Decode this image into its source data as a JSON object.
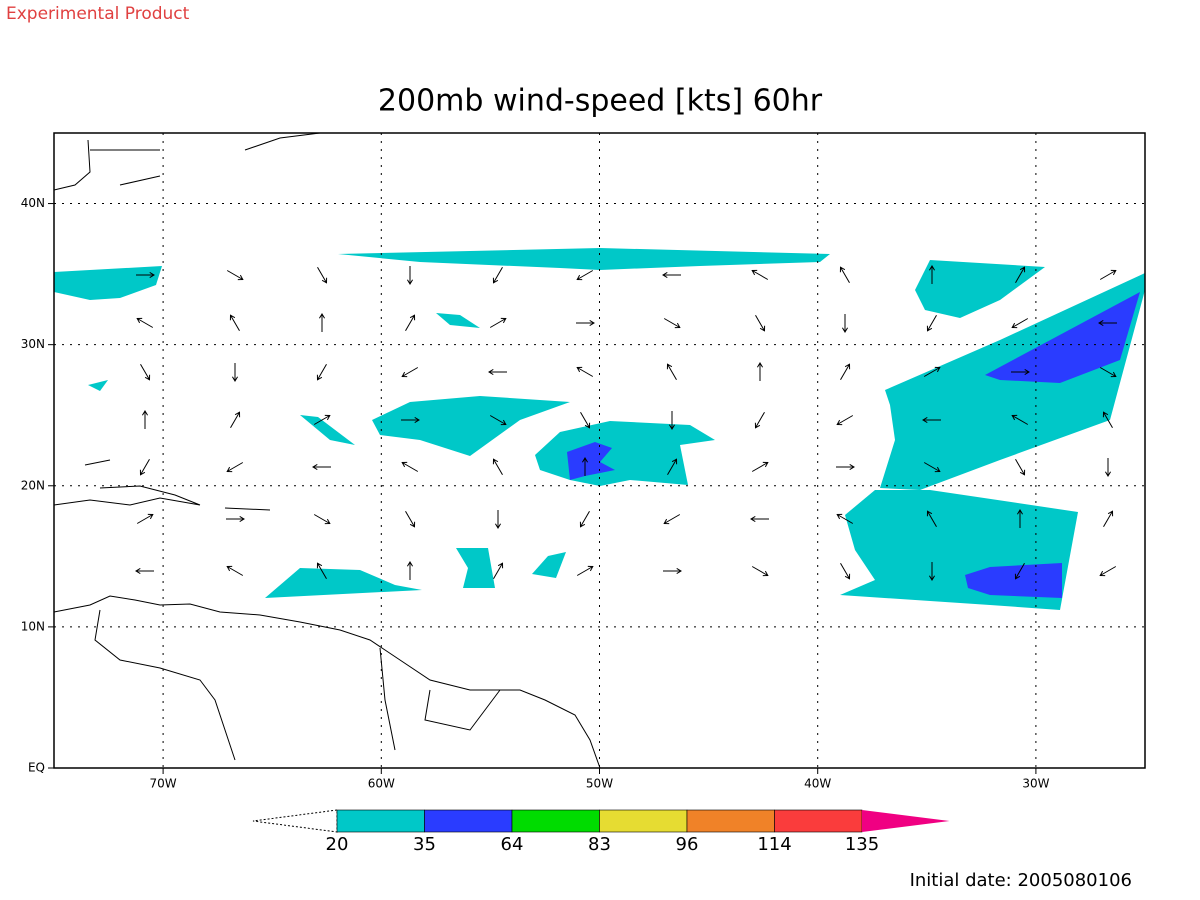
{
  "header": {
    "label": "Experimental Product",
    "title": "200mb wind-speed [kts] 60hr"
  },
  "map": {
    "lonlim": [
      -75,
      -25
    ],
    "latlim": [
      0,
      45
    ],
    "lonticks": [
      {
        "value": -70,
        "label": "70W"
      },
      {
        "value": -60,
        "label": "60W"
      },
      {
        "value": -50,
        "label": "50W"
      },
      {
        "value": -40,
        "label": "40W"
      },
      {
        "value": -30,
        "label": "30W"
      }
    ],
    "latticks": [
      {
        "value": 0,
        "label": "EQ"
      },
      {
        "value": 10,
        "label": "10N"
      },
      {
        "value": 20,
        "label": "20N"
      },
      {
        "value": 30,
        "label": "30N"
      },
      {
        "value": 40,
        "label": "40N"
      }
    ]
  },
  "colorbar": {
    "levels": [
      20,
      35,
      64,
      83,
      96,
      114,
      135
    ],
    "colors": [
      "#00c8c8",
      "#2a3cff",
      "#00dc00",
      "#e6dc32",
      "#f08228",
      "#fa3c3c",
      "#f00082"
    ]
  },
  "footer": {
    "label": "Initial date: 2005080106"
  }
}
